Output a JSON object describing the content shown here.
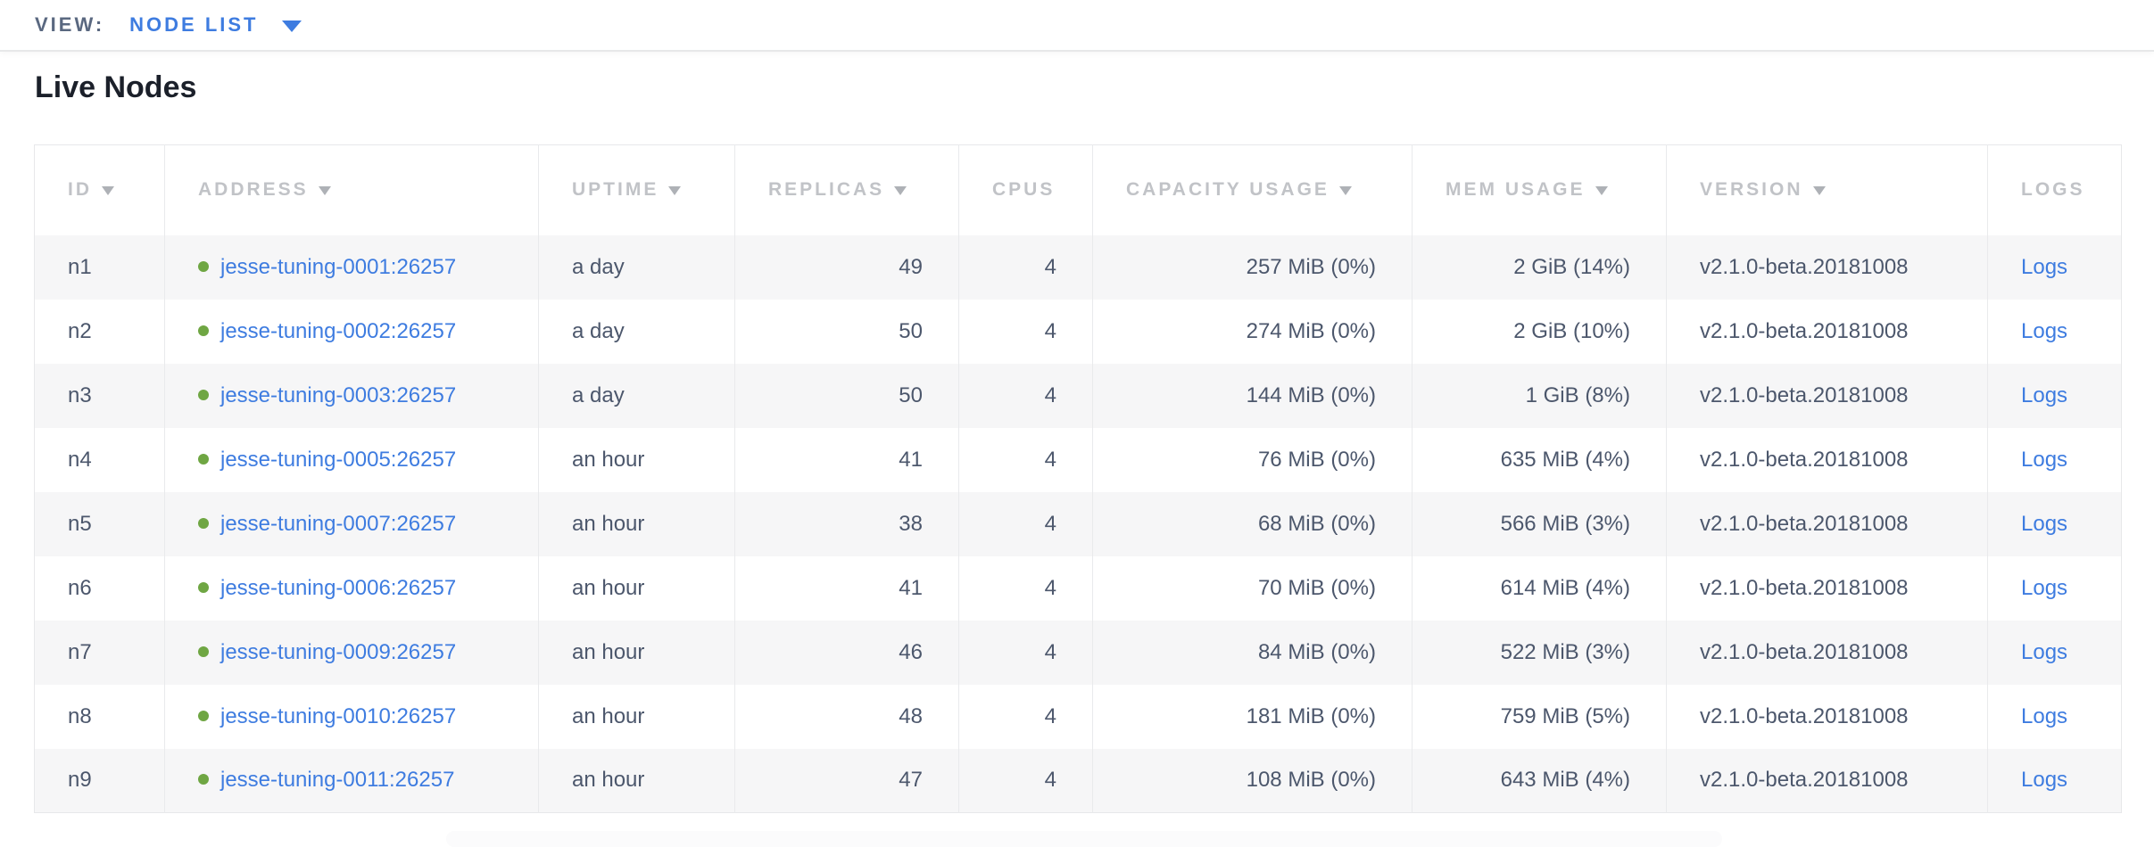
{
  "view_bar": {
    "label": "VIEW:",
    "selected": "NODE LIST"
  },
  "page": {
    "title": "Live Nodes"
  },
  "colors": {
    "accent_blue": "#3E7CE0",
    "link_blue": "#3E7CE0",
    "healthy_green": "#6FA643",
    "header_text": "#C1C3C7",
    "cell_text": "#4C576C",
    "row_stripe": "#F6F6F7",
    "border": "#E9EAEC"
  },
  "table": {
    "columns": [
      {
        "key": "id",
        "label": "ID",
        "sortable": true,
        "align": "left"
      },
      {
        "key": "address",
        "label": "ADDRESS",
        "sortable": true,
        "align": "left"
      },
      {
        "key": "uptime",
        "label": "UPTIME",
        "sortable": true,
        "align": "left"
      },
      {
        "key": "replicas",
        "label": "REPLICAS",
        "sortable": true,
        "align": "right"
      },
      {
        "key": "cpus",
        "label": "CPUS",
        "sortable": false,
        "align": "right"
      },
      {
        "key": "capacity",
        "label": "CAPACITY USAGE",
        "sortable": true,
        "align": "right"
      },
      {
        "key": "mem",
        "label": "MEM USAGE",
        "sortable": true,
        "align": "right"
      },
      {
        "key": "version",
        "label": "VERSION",
        "sortable": true,
        "align": "left"
      },
      {
        "key": "logs",
        "label": "LOGS",
        "sortable": false,
        "align": "left"
      }
    ],
    "rows": [
      {
        "id": "n1",
        "status": "healthy",
        "address": "jesse-tuning-0001:26257",
        "uptime": "a day",
        "replicas": "49",
        "cpus": "4",
        "capacity": "257 MiB (0%)",
        "mem": "2 GiB (14%)",
        "version": "v2.1.0-beta.20181008",
        "logs": "Logs"
      },
      {
        "id": "n2",
        "status": "healthy",
        "address": "jesse-tuning-0002:26257",
        "uptime": "a day",
        "replicas": "50",
        "cpus": "4",
        "capacity": "274 MiB (0%)",
        "mem": "2 GiB (10%)",
        "version": "v2.1.0-beta.20181008",
        "logs": "Logs"
      },
      {
        "id": "n3",
        "status": "healthy",
        "address": "jesse-tuning-0003:26257",
        "uptime": "a day",
        "replicas": "50",
        "cpus": "4",
        "capacity": "144 MiB (0%)",
        "mem": "1 GiB (8%)",
        "version": "v2.1.0-beta.20181008",
        "logs": "Logs"
      },
      {
        "id": "n4",
        "status": "healthy",
        "address": "jesse-tuning-0005:26257",
        "uptime": "an hour",
        "replicas": "41",
        "cpus": "4",
        "capacity": "76 MiB (0%)",
        "mem": "635 MiB (4%)",
        "version": "v2.1.0-beta.20181008",
        "logs": "Logs"
      },
      {
        "id": "n5",
        "status": "healthy",
        "address": "jesse-tuning-0007:26257",
        "uptime": "an hour",
        "replicas": "38",
        "cpus": "4",
        "capacity": "68 MiB (0%)",
        "mem": "566 MiB (3%)",
        "version": "v2.1.0-beta.20181008",
        "logs": "Logs"
      },
      {
        "id": "n6",
        "status": "healthy",
        "address": "jesse-tuning-0006:26257",
        "uptime": "an hour",
        "replicas": "41",
        "cpus": "4",
        "capacity": "70 MiB (0%)",
        "mem": "614 MiB (4%)",
        "version": "v2.1.0-beta.20181008",
        "logs": "Logs"
      },
      {
        "id": "n7",
        "status": "healthy",
        "address": "jesse-tuning-0009:26257",
        "uptime": "an hour",
        "replicas": "46",
        "cpus": "4",
        "capacity": "84 MiB (0%)",
        "mem": "522 MiB (3%)",
        "version": "v2.1.0-beta.20181008",
        "logs": "Logs"
      },
      {
        "id": "n8",
        "status": "healthy",
        "address": "jesse-tuning-0010:26257",
        "uptime": "an hour",
        "replicas": "48",
        "cpus": "4",
        "capacity": "181 MiB (0%)",
        "mem": "759 MiB (5%)",
        "version": "v2.1.0-beta.20181008",
        "logs": "Logs"
      },
      {
        "id": "n9",
        "status": "healthy",
        "address": "jesse-tuning-0011:26257",
        "uptime": "an hour",
        "replicas": "47",
        "cpus": "4",
        "capacity": "108 MiB (0%)",
        "mem": "643 MiB (4%)",
        "version": "v2.1.0-beta.20181008",
        "logs": "Logs"
      }
    ]
  }
}
